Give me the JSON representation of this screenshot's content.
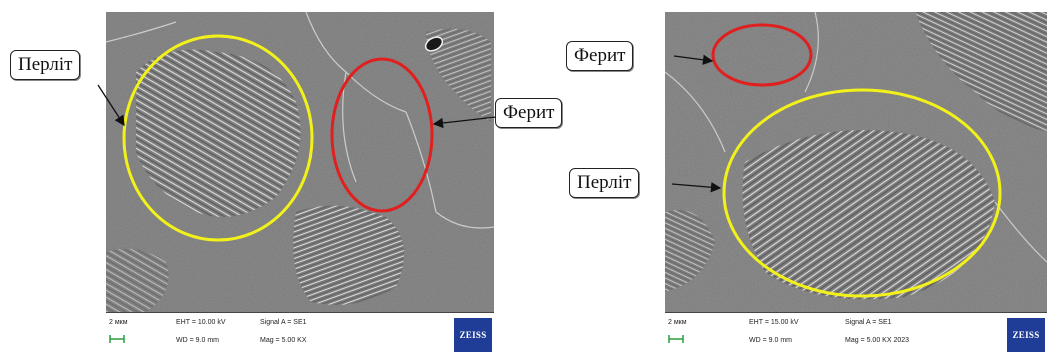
{
  "colors": {
    "pearlite_outline": "#f2f21a",
    "ferrite_outline": "#e01f1f",
    "brand_box": "#1f3c96"
  },
  "left_panel": {
    "labels": {
      "pearlite": "Перліт",
      "ferrite": "Ферит"
    },
    "info": {
      "scale": "2 мкм",
      "eht": "EHT = 10.00 kV",
      "wd": "WD = 9.0 mm",
      "signal": "Signal A = SE1",
      "mag": "Mag = 5.00 KX",
      "brand": "ZEISS"
    }
  },
  "right_panel": {
    "labels": {
      "pearlite": "Перліт",
      "ferrite": "Ферит"
    },
    "info": {
      "scale": "2 мкм",
      "eht": "EHT = 15.00 kV",
      "wd": "WD = 9.0 mm",
      "signal": "Signal A = SE1",
      "mag": "Mag = 5.00 KX 2023",
      "brand": "ZEISS"
    }
  }
}
